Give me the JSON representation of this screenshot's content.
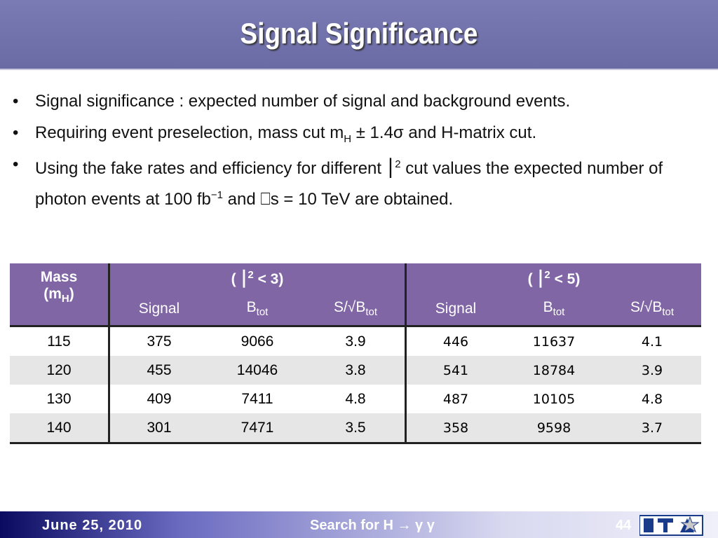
{
  "header": {
    "title": "Signal Significance"
  },
  "bullets": [
    {
      "text": "Signal significance : expected number of signal and background events."
    },
    {
      "text": "Requiring event preselection, mass cut  m",
      "sub": "H",
      "text_after": " ± 1.4σ and H-matrix cut."
    },
    {
      "text": "Using the fake rates and efficiency for different ",
      "symbol": "⎮",
      "symbol_sup": "2",
      "text_mid": " cut values the expected number of photon events at 100 fb",
      "unit_sup": "−1",
      "text_after": " and ⎕s = 10 TeV are obtained."
    }
  ],
  "table": {
    "mass_header": [
      "Mass",
      "(m",
      "H",
      ")"
    ],
    "groups": [
      [
        "( ⎮",
        "2",
        " < 3)"
      ],
      [
        "( ⎮",
        "2",
        " < 5)"
      ]
    ],
    "columns": [
      [
        {
          "base": "Signal"
        },
        {
          "base": "B",
          "sub": "tot"
        },
        {
          "base": "S/√B",
          "sub": "tot"
        }
      ],
      [
        {
          "base": "Signal"
        },
        {
          "base": "B",
          "sub": "tot"
        },
        {
          "base": "S/√B",
          "sub": "tot"
        }
      ]
    ],
    "rows": [
      [
        "115",
        "375",
        "9066",
        "3.9",
        "446",
        "11637",
        "4.1"
      ],
      [
        "120",
        "455",
        "14046",
        "3.8",
        "541",
        "18784",
        "3.9"
      ],
      [
        "130",
        "409",
        "7411",
        "4.8",
        "487",
        "10105",
        "4.8"
      ],
      [
        "140",
        "301",
        "7471",
        "3.5",
        "358",
        "9598",
        "3.7"
      ]
    ]
  },
  "footer": {
    "date": "June 25, 2010",
    "title": "Search for H → γ γ",
    "page": "44"
  }
}
